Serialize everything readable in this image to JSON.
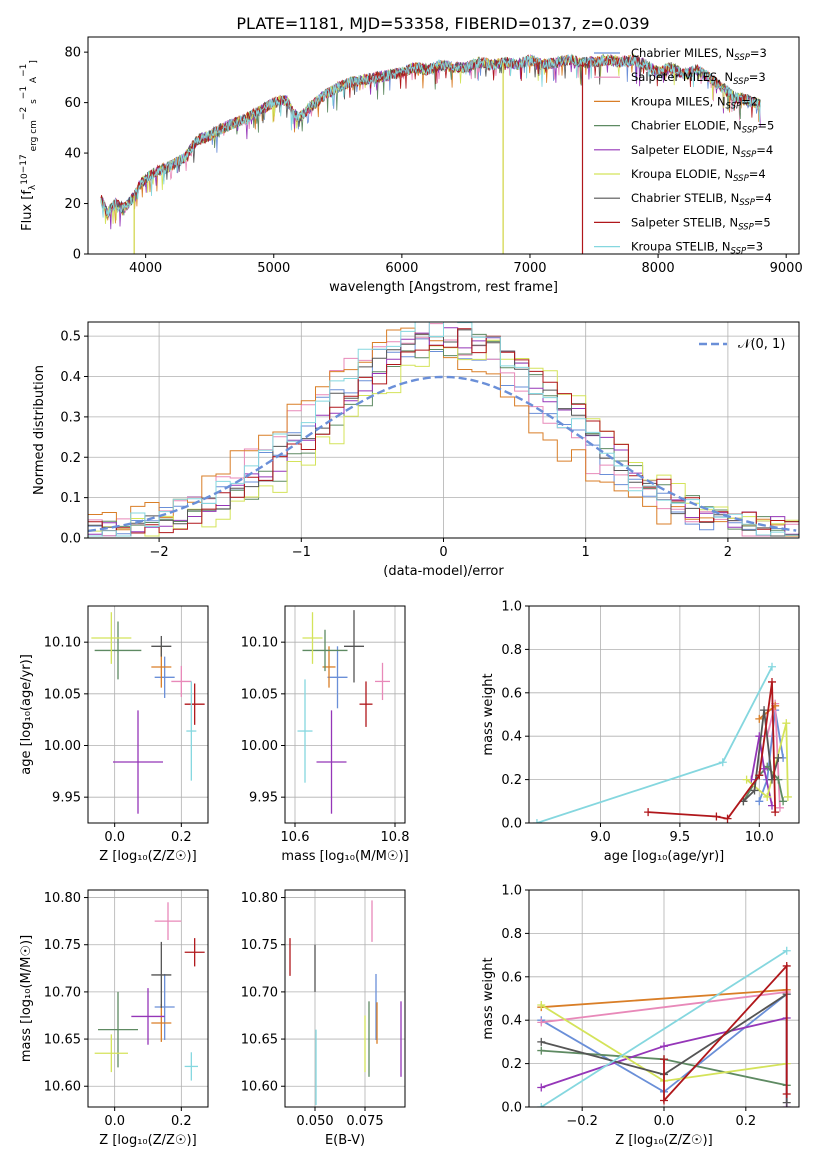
{
  "palette": [
    "#6a8fd8",
    "#e889b9",
    "#d97e27",
    "#5e8a62",
    "#9536b8",
    "#d4e35a",
    "#555555",
    "#b0171b",
    "#85d7df"
  ],
  "title": "PLATE=1181, MJD=53358, FIBERID=0137, z=0.039",
  "chart_data": [
    {
      "id": "spectrum",
      "type": "line",
      "xlabel": "wavelength [Angstrom, rest frame]",
      "ylabel": "Flux [f$_λ$10$^{-17}$ erg cm$^{-2}$ s$^{-1}$ A$^{-1}$]",
      "ylabel_parts": {
        "a": "Flux [f",
        "b": "λ",
        "c": "10",
        "d": "−17",
        "e": " erg cm",
        "f": "−2",
        "g": " s",
        "h": "−1",
        "i": " A",
        "j": "−1",
        "k": "]"
      },
      "xlim": [
        3550,
        9100
      ],
      "ylim": [
        0,
        86
      ],
      "xticks": [
        4000,
        5000,
        6000,
        7000,
        8000,
        9000
      ],
      "yticks": [
        0,
        20,
        40,
        60,
        80
      ],
      "grid": false,
      "legend_placement": "top-right",
      "continuum": [
        [
          3650,
          22
        ],
        [
          3700,
          16
        ],
        [
          3760,
          20
        ],
        [
          3830,
          18
        ],
        [
          3900,
          22
        ],
        [
          3950,
          27
        ],
        [
          4000,
          30
        ],
        [
          4100,
          33
        ],
        [
          4200,
          35
        ],
        [
          4300,
          38
        ],
        [
          4400,
          45
        ],
        [
          4500,
          47
        ],
        [
          4600,
          50
        ],
        [
          4700,
          52
        ],
        [
          4800,
          54
        ],
        [
          4900,
          57
        ],
        [
          5000,
          60
        ],
        [
          5100,
          61
        ],
        [
          5150,
          56
        ],
        [
          5200,
          54
        ],
        [
          5300,
          59
        ],
        [
          5400,
          63
        ],
        [
          5500,
          66
        ],
        [
          5600,
          68
        ],
        [
          5700,
          69
        ],
        [
          5800,
          70
        ],
        [
          5900,
          71
        ],
        [
          6000,
          72
        ],
        [
          6100,
          74
        ],
        [
          6200,
          73
        ],
        [
          6300,
          75
        ],
        [
          6400,
          74
        ],
        [
          6500,
          74
        ],
        [
          6600,
          76
        ],
        [
          6700,
          75
        ],
        [
          6800,
          76
        ],
        [
          6900,
          75
        ],
        [
          7000,
          77
        ],
        [
          7100,
          75
        ],
        [
          7200,
          76
        ],
        [
          7300,
          77
        ],
        [
          7400,
          76
        ],
        [
          7500,
          76
        ],
        [
          7600,
          77
        ],
        [
          7700,
          76
        ],
        [
          7800,
          77
        ],
        [
          7900,
          75
        ],
        [
          8000,
          72
        ],
        [
          8100,
          74
        ],
        [
          8200,
          71
        ],
        [
          8300,
          73
        ],
        [
          8400,
          70
        ],
        [
          8500,
          66
        ],
        [
          8600,
          62
        ],
        [
          8700,
          61
        ],
        [
          8800,
          59
        ]
      ],
      "drops": [
        [
          3910,
          0
        ],
        [
          6790,
          0
        ],
        [
          7410,
          0
        ]
      ],
      "series": [
        {
          "label_name": "Chabrier MILES, N",
          "label_sub": "SSP",
          "label_val": "=3"
        },
        {
          "label_name": "Salpeter MILES, N",
          "label_sub": "SSP",
          "label_val": "=3"
        },
        {
          "label_name": "Kroupa MILES, N",
          "label_sub": "SSP",
          "label_val": "=2"
        },
        {
          "label_name": "Chabrier ELODIE, N",
          "label_sub": "SSP",
          "label_val": "=5"
        },
        {
          "label_name": "Salpeter ELODIE, N",
          "label_sub": "SSP",
          "label_val": "=4"
        },
        {
          "label_name": "Kroupa ELODIE, N",
          "label_sub": "SSP",
          "label_val": "=4"
        },
        {
          "label_name": "Chabrier STELIB, N",
          "label_sub": "SSP",
          "label_val": "=4"
        },
        {
          "label_name": "Salpeter STELIB, N",
          "label_sub": "SSP",
          "label_val": "=5"
        },
        {
          "label_name": "Kroupa STELIB, N",
          "label_sub": "SSP",
          "label_val": "=3"
        }
      ]
    },
    {
      "id": "residuals",
      "type": "histogram",
      "xlabel": "(data-model)/error",
      "ylabel": "Normed distribution",
      "xlim": [
        -2.5,
        2.5
      ],
      "ylim": [
        0,
        0.535
      ],
      "xticks": [
        -2,
        -1,
        0,
        1,
        2
      ],
      "xticklabels": [
        "−2",
        "−1",
        "0",
        "1",
        "2"
      ],
      "yticks": [
        0,
        0.1,
        0.2,
        0.3,
        0.4,
        0.5
      ],
      "yticklabels": [
        "0.0",
        "0.1",
        "0.2",
        "0.3",
        "0.4",
        "0.5"
      ],
      "grid": true,
      "legend_placement": "top-right",
      "legend_label": "𝒩(0, 1)",
      "gaussian": {
        "mean": 0,
        "sigma": 1
      }
    },
    {
      "id": "age-vs-Z",
      "type": "errorbar",
      "xlabel": "Z [log₁₀(Z/Z☉)]",
      "ylabel": "age  [log₁₀(age/yr)]",
      "xlim": [
        -0.08,
        0.28
      ],
      "ylim": [
        9.925,
        10.135
      ],
      "xticks": [
        0.0,
        0.2
      ],
      "xticklabels": [
        "0.0",
        "0.2"
      ],
      "yticks": [
        9.95,
        10.0,
        10.05,
        10.1
      ],
      "yticklabels": [
        "9.95",
        "10.00",
        "10.05",
        "10.10"
      ],
      "grid": true,
      "points": [
        {
          "x": 0.15,
          "xe": 0.03,
          "y": 10.066,
          "ye": 0.02
        },
        {
          "x": 0.2,
          "xe": 0.03,
          "y": 10.062,
          "ye": 0.015
        },
        {
          "x": 0.14,
          "xe": 0.03,
          "y": 10.076,
          "ye": 0.02
        },
        {
          "x": 0.01,
          "xe": 0.07,
          "y": 10.092,
          "ye": 0.028
        },
        {
          "x": 0.07,
          "xe": 0.075,
          "y": 9.984,
          "ye": 0.05
        },
        {
          "x": -0.01,
          "xe": 0.06,
          "y": 10.104,
          "ye": 0.025
        },
        {
          "x": 0.14,
          "xe": 0.03,
          "y": 10.096,
          "ye": 0.01
        },
        {
          "x": 0.24,
          "xe": 0.03,
          "y": 10.04,
          "ye": 0.02
        },
        {
          "x": 0.23,
          "xe": 0.015,
          "y": 10.014,
          "ye": 0.048
        }
      ]
    },
    {
      "id": "age-vs-mass",
      "type": "errorbar",
      "xlabel": "mass [log₁₀(M/M☉)]",
      "ylabel": "",
      "xlim": [
        10.58,
        10.82
      ],
      "ylim": [
        9.925,
        10.135
      ],
      "xticks": [
        10.6,
        10.8
      ],
      "xticklabels": [
        "10.6",
        "10.8"
      ],
      "yticks": [
        9.95,
        10.0,
        10.05,
        10.1
      ],
      "yticklabels": [
        "9.95",
        "10.00",
        "10.05",
        "10.10"
      ],
      "grid": true,
      "points": [
        {
          "x": 10.685,
          "xe": 0.02,
          "y": 10.066,
          "ye": 0.03
        },
        {
          "x": 10.775,
          "xe": 0.015,
          "y": 10.062,
          "ye": 0.018
        },
        {
          "x": 10.668,
          "xe": 0.013,
          "y": 10.076,
          "ye": 0.02
        },
        {
          "x": 10.66,
          "xe": 0.045,
          "y": 10.092,
          "ye": 0.02
        },
        {
          "x": 10.673,
          "xe": 0.03,
          "y": 9.984,
          "ye": 0.05
        },
        {
          "x": 10.635,
          "xe": 0.02,
          "y": 10.104,
          "ye": 0.025
        },
        {
          "x": 10.718,
          "xe": 0.02,
          "y": 10.096,
          "ye": 0.035
        },
        {
          "x": 10.742,
          "xe": 0.013,
          "y": 10.04,
          "ye": 0.022
        },
        {
          "x": 10.62,
          "xe": 0.015,
          "y": 10.014,
          "ye": 0.05
        }
      ]
    },
    {
      "id": "weight-vs-age",
      "type": "line",
      "xlabel": "age  [log₁₀(age/yr)]",
      "ylabel": "mass weight",
      "xlim": [
        8.55,
        10.25
      ],
      "ylim": [
        0,
        1
      ],
      "xticks": [
        9.0,
        9.5,
        10.0
      ],
      "xticklabels": [
        "9.0",
        "9.5",
        "10.0"
      ],
      "yticks": [
        0,
        0.2,
        0.4,
        0.6,
        0.8,
        1.0
      ],
      "yticklabels": [
        "0.0",
        "0.2",
        "0.4",
        "0.6",
        "0.8",
        "1.0"
      ],
      "grid": true,
      "series": [
        [
          [
            10.0,
            0.1
          ],
          [
            10.05,
            0.2
          ],
          [
            10.1,
            0.52
          ],
          [
            10.15,
            0.3
          ]
        ],
        [
          [
            10.05,
            0.4
          ],
          [
            10.1,
            0.55
          ],
          [
            10.13,
            0.07
          ]
        ],
        [
          [
            10.0,
            0.48
          ],
          [
            10.1,
            0.54
          ]
        ],
        [
          [
            9.9,
            0.1
          ],
          [
            10.0,
            0.22
          ],
          [
            10.05,
            0.26
          ],
          [
            10.12,
            0.2
          ],
          [
            10.15,
            0.1
          ]
        ],
        [
          [
            9.95,
            0.2
          ],
          [
            10.0,
            0.4
          ],
          [
            10.03,
            0.25
          ],
          [
            10.08,
            0.08
          ]
        ],
        [
          [
            9.92,
            0.2
          ],
          [
            10.05,
            0.12
          ],
          [
            10.17,
            0.46
          ],
          [
            10.18,
            0.12
          ]
        ],
        [
          [
            9.9,
            0.1
          ],
          [
            9.97,
            0.15
          ],
          [
            10.03,
            0.52
          ],
          [
            10.08,
            0.2
          ],
          [
            10.12,
            0.3
          ]
        ],
        [
          [
            9.3,
            0.05
          ],
          [
            9.73,
            0.03
          ],
          [
            9.8,
            0.02
          ],
          [
            10.0,
            0.22
          ],
          [
            10.08,
            0.65
          ],
          [
            10.1,
            0.05
          ]
        ],
        [
          [
            8.6,
            0.0
          ],
          [
            9.77,
            0.28
          ],
          [
            10.08,
            0.72
          ]
        ]
      ]
    },
    {
      "id": "mass-vs-Z",
      "type": "errorbar",
      "xlabel": "Z [log₁₀(Z/Z☉)]",
      "ylabel": "mass [log₁₀(M/M☉)]",
      "xlim": [
        -0.08,
        0.28
      ],
      "ylim": [
        10.578,
        10.808
      ],
      "xticks": [
        0.0,
        0.2
      ],
      "xticklabels": [
        "0.0",
        "0.2"
      ],
      "yticks": [
        10.6,
        10.65,
        10.7,
        10.75,
        10.8
      ],
      "yticklabels": [
        "10.60",
        "10.65",
        "10.70",
        "10.75",
        "10.80"
      ],
      "grid": true,
      "points": [
        {
          "x": 0.15,
          "xe": 0.03,
          "y": 10.684,
          "ye": 0.035
        },
        {
          "x": 0.16,
          "xe": 0.04,
          "y": 10.775,
          "ye": 0.02
        },
        {
          "x": 0.14,
          "xe": 0.03,
          "y": 10.667,
          "ye": 0.02
        },
        {
          "x": 0.01,
          "xe": 0.06,
          "y": 10.66,
          "ye": 0.04
        },
        {
          "x": 0.1,
          "xe": 0.05,
          "y": 10.674,
          "ye": 0.03
        },
        {
          "x": -0.01,
          "xe": 0.05,
          "y": 10.635,
          "ye": 0.02
        },
        {
          "x": 0.14,
          "xe": 0.03,
          "y": 10.718,
          "ye": 0.035
        },
        {
          "x": 0.24,
          "xe": 0.03,
          "y": 10.742,
          "ye": 0.015
        },
        {
          "x": 0.23,
          "xe": 0.02,
          "y": 10.621,
          "ye": 0.015
        }
      ]
    },
    {
      "id": "mass-vs-ebv",
      "type": "errorbar",
      "xlabel": "E(B-V)",
      "ylabel": "",
      "xlim": [
        0.035,
        0.095
      ],
      "ylim": [
        10.578,
        10.808
      ],
      "xticks": [
        0.05,
        0.075
      ],
      "xticklabels": [
        "0.050",
        "0.075"
      ],
      "yticks": [
        10.6,
        10.65,
        10.7,
        10.75,
        10.8
      ],
      "yticklabels": [
        "10.60",
        "10.65",
        "10.70",
        "10.75",
        "10.80"
      ],
      "grid": true,
      "points": [
        {
          "x": 0.0805,
          "xe": 0,
          "y": 10.684,
          "ye": 0.035
        },
        {
          "x": 0.0785,
          "xe": 0,
          "y": 10.775,
          "ye": 0.022
        },
        {
          "x": 0.081,
          "xe": 0,
          "y": 10.667,
          "ye": 0.022
        },
        {
          "x": 0.077,
          "xe": 0,
          "y": 10.65,
          "ye": 0.04
        },
        {
          "x": 0.093,
          "xe": 0,
          "y": 10.65,
          "ye": 0.04
        },
        {
          "x": 0.075,
          "xe": 0,
          "y": 10.645,
          "ye": 0.03
        },
        {
          "x": 0.05,
          "xe": 0,
          "y": 10.725,
          "ye": 0.025
        },
        {
          "x": 0.0375,
          "xe": 0,
          "y": 10.737,
          "ye": 0.02
        },
        {
          "x": 0.0505,
          "xe": 0,
          "y": 10.62,
          "ye": 0.04
        }
      ]
    },
    {
      "id": "weight-vs-Z",
      "type": "line",
      "xlabel": "Z [log₁₀(Z/Z☉)]",
      "ylabel": "mass weight",
      "xlim": [
        -0.33,
        0.33
      ],
      "ylim": [
        0,
        1
      ],
      "xticks": [
        -0.2,
        0.0,
        0.2
      ],
      "xticklabels": [
        "−0.2",
        "0.0",
        "0.2"
      ],
      "yticks": [
        0,
        0.2,
        0.4,
        0.6,
        0.8,
        1.0
      ],
      "yticklabels": [
        "0.0",
        "0.2",
        "0.4",
        "0.6",
        "0.8",
        "1.0"
      ],
      "grid": true,
      "series": [
        [
          [
            -0.3,
            0.4
          ],
          [
            0.0,
            0.07
          ],
          [
            0.3,
            0.52
          ]
        ],
        [
          [
            -0.3,
            0.39
          ],
          [
            0.3,
            0.53
          ]
        ],
        [
          [
            -0.3,
            0.46
          ],
          [
            0.3,
            0.54
          ]
        ],
        [
          [
            -0.3,
            0.26
          ],
          [
            0.0,
            0.22
          ],
          [
            0.3,
            0.1
          ]
        ],
        [
          [
            -0.3,
            0.09
          ],
          [
            0.0,
            0.28
          ],
          [
            0.3,
            0.41
          ],
          [
            0.3,
            0.0
          ]
        ],
        [
          [
            -0.3,
            0.47
          ],
          [
            0.0,
            0.12
          ],
          [
            0.3,
            0.2
          ]
        ],
        [
          [
            -0.3,
            0.3
          ],
          [
            0.0,
            0.15
          ],
          [
            0.3,
            0.52
          ],
          [
            0.3,
            0.02
          ]
        ],
        [
          [
            0.0,
            0.22
          ],
          [
            0.0,
            0.03
          ],
          [
            0.3,
            0.65
          ],
          [
            0.3,
            0.06
          ]
        ],
        [
          [
            -0.3,
            0.0
          ],
          [
            0.3,
            0.72
          ]
        ]
      ]
    }
  ]
}
